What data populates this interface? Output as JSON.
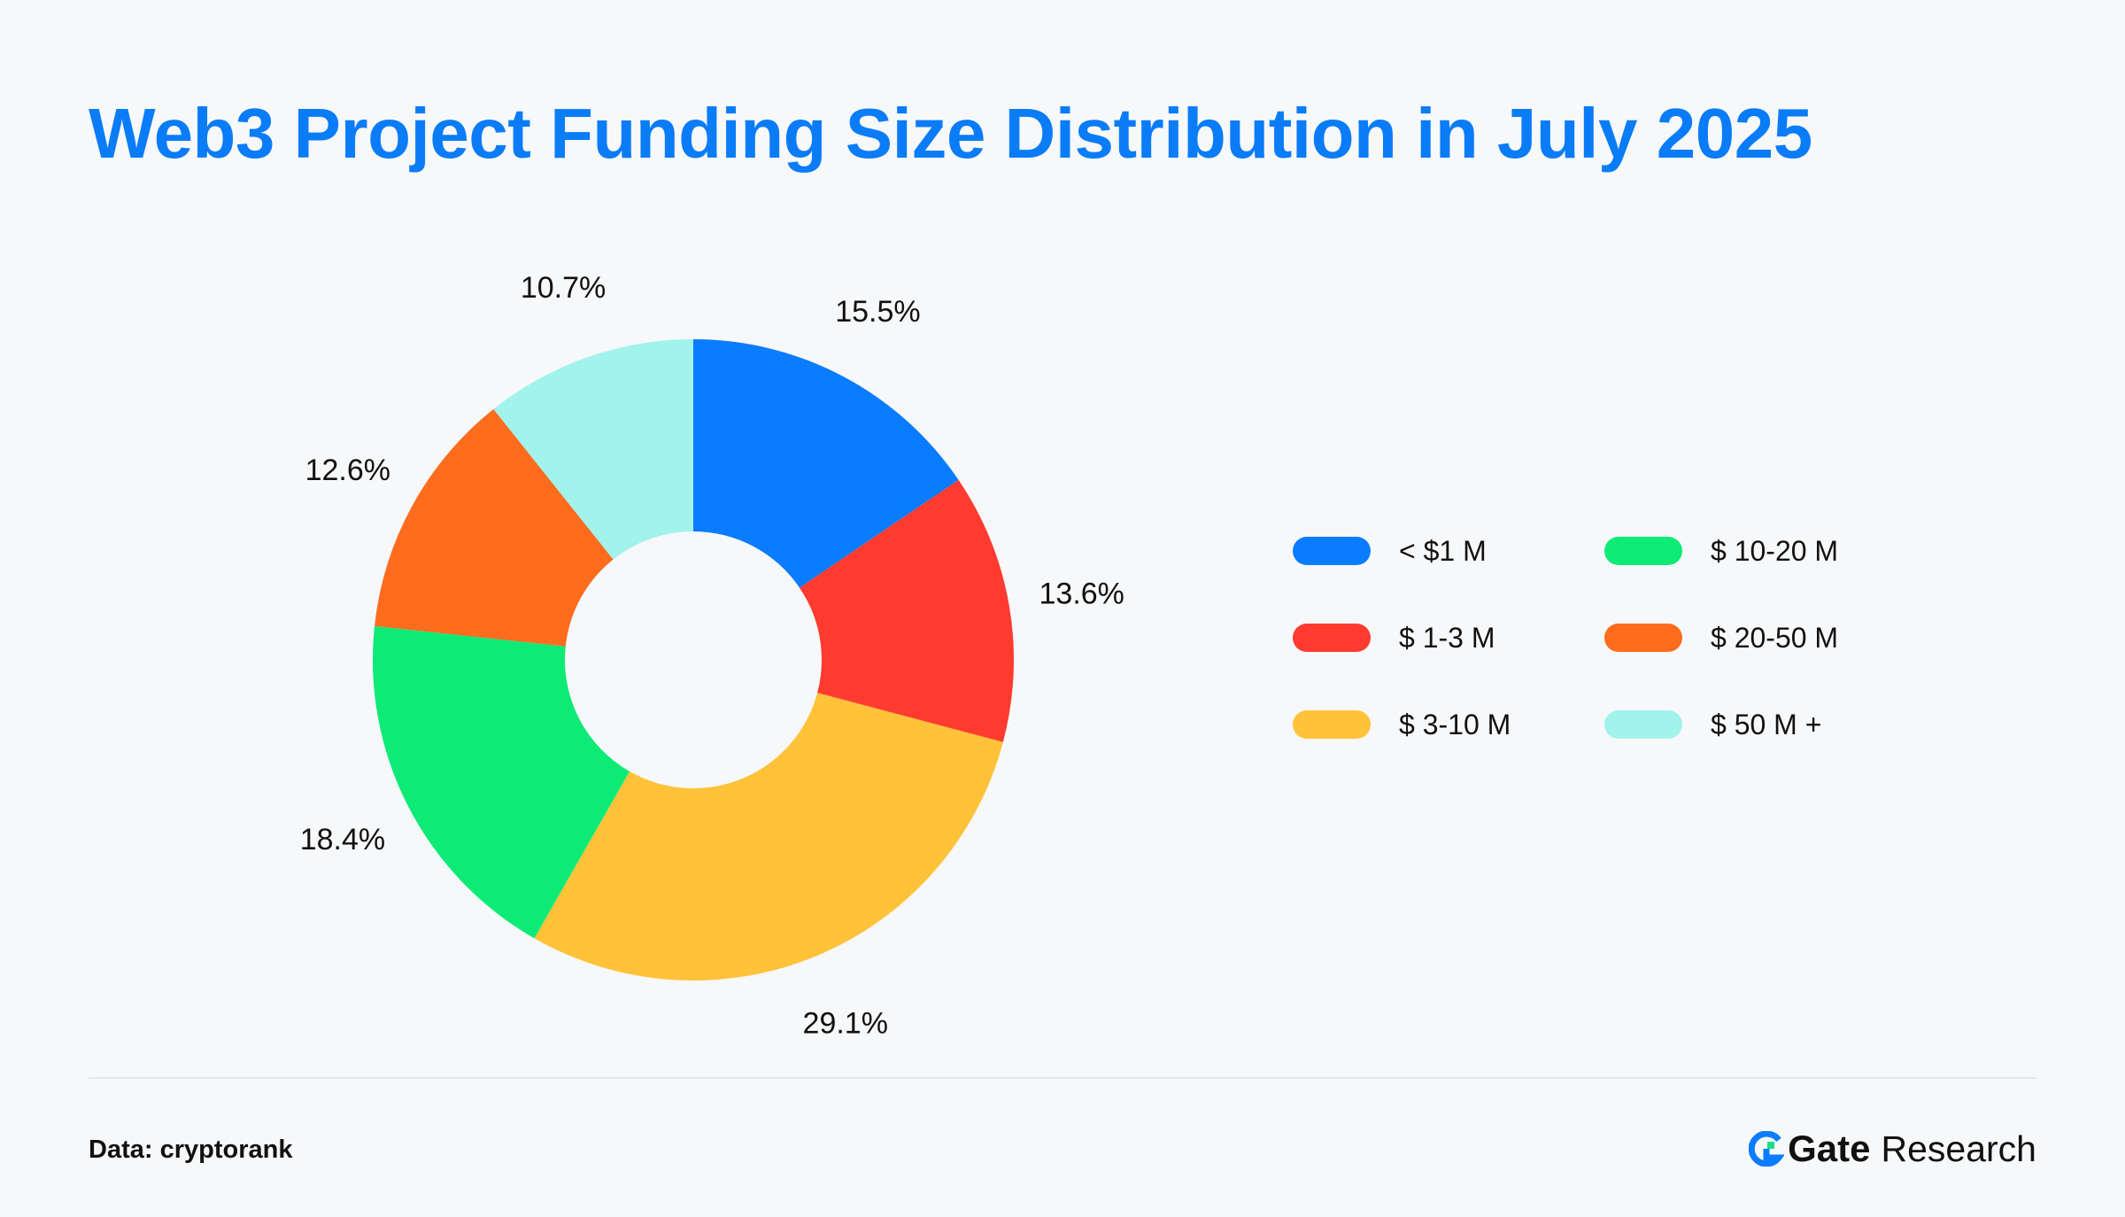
{
  "header": {
    "title": "Web3 Project Funding Size Distribution in July 2025"
  },
  "chart_data": {
    "type": "pie",
    "variant": "donut",
    "title": "Web3 Project Funding Size Distribution in July 2025",
    "categories": [
      "< $1 M",
      "$ 1-3 M",
      "$ 3-10 M",
      "$ 10-20 M",
      "$ 20-50 M",
      "$ 50 M +"
    ],
    "values": [
      15.5,
      13.6,
      29.1,
      18.4,
      12.6,
      10.7
    ],
    "value_labels": [
      "15.5%",
      "13.6%",
      "29.1%",
      "18.4%",
      "12.6%",
      "10.7%"
    ],
    "unit": "%",
    "colors": [
      "#0a7cff",
      "#ff3b2f",
      "#ffc239",
      "#0deb76",
      "#ff6c1e",
      "#a1f3ec"
    ],
    "legend_position": "right"
  },
  "footer": {
    "source": "Data: cryptorank",
    "brand_name": "Gate",
    "brand_suffix": "Research",
    "brand_colors": [
      "#0a7cff",
      "#18e08a"
    ]
  }
}
